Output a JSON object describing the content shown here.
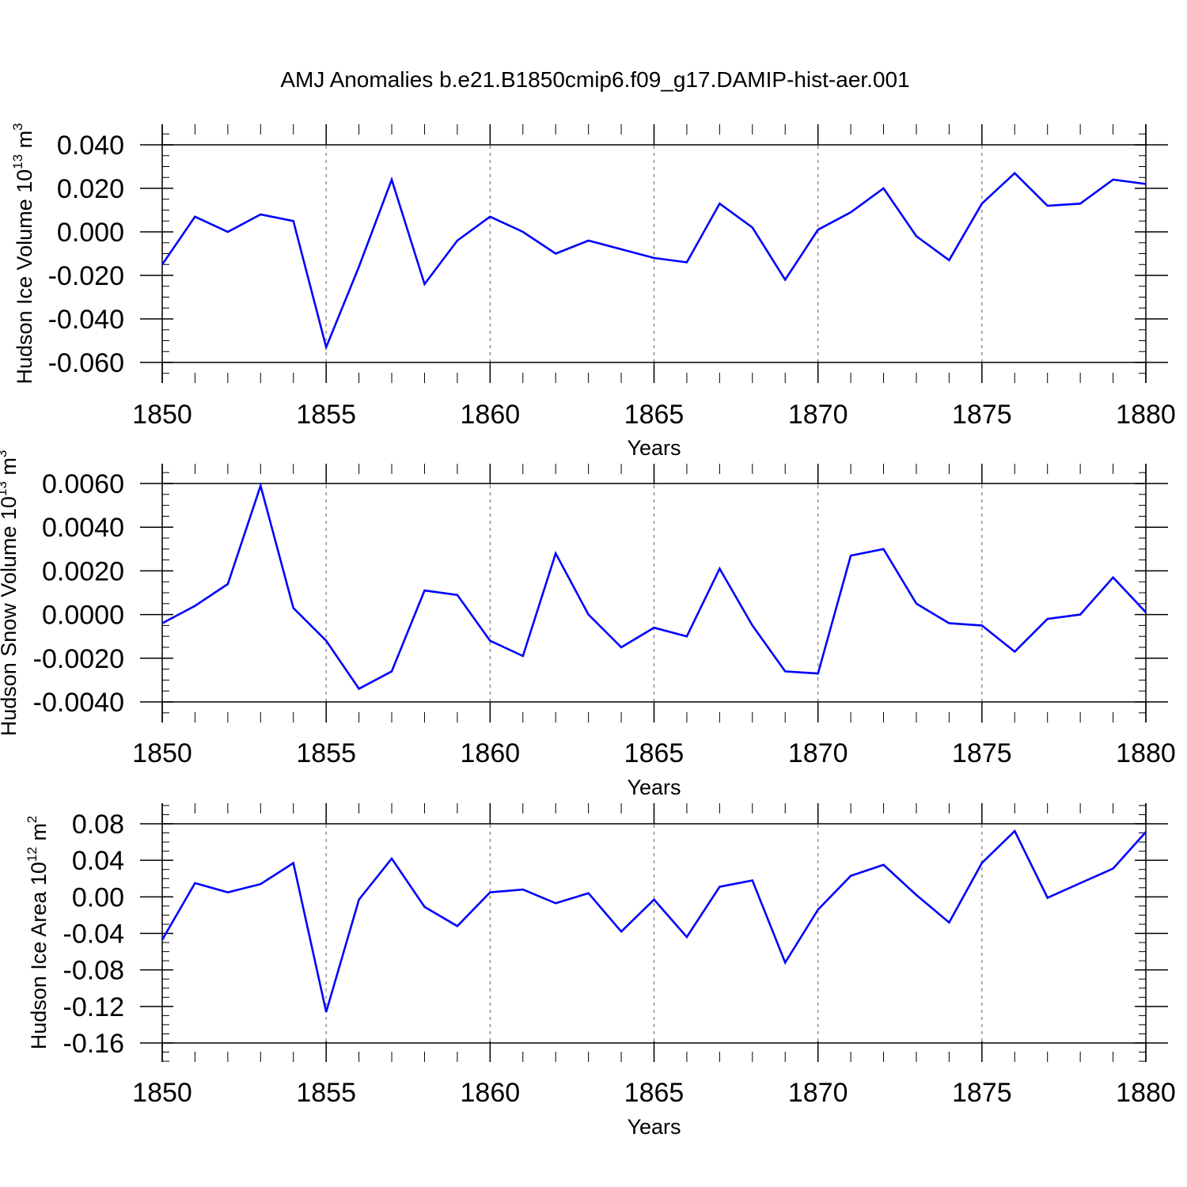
{
  "title": "AMJ Anomalies b.e21.B1850cmip6.f09_g17.DAMIP-hist-aer.001",
  "colors": {
    "line": "#0000ff",
    "axis": "#000000",
    "grid": "#777777"
  },
  "chart_data": [
    {
      "type": "line",
      "ylabel_main": "Hudson Ice Volume 10",
      "ylabel_exp": "13",
      "ylabel_unit": " m",
      "ylabel_unit_exp": "3",
      "xlabel": "Years",
      "xlim": [
        1850,
        1880
      ],
      "ylim": [
        -0.07,
        0.04
      ],
      "yticks": [
        -0.06,
        -0.04,
        -0.02,
        0.0,
        0.02,
        0.04
      ],
      "ytick_labels": [
        "-0.060",
        "-0.040",
        "-0.020",
        "0.000",
        "0.020",
        "0.040"
      ],
      "yminor_step": 0.005,
      "xticks": [
        1850,
        1855,
        1860,
        1865,
        1870,
        1875,
        1880
      ],
      "xtick_labels": [
        "1850",
        "1855",
        "1860",
        "1865",
        "1870",
        "1875",
        "1880"
      ],
      "grid": "dashed vertical at major x ticks",
      "x": [
        1850,
        1851,
        1852,
        1853,
        1854,
        1855,
        1856,
        1857,
        1858,
        1859,
        1860,
        1861,
        1862,
        1863,
        1864,
        1865,
        1866,
        1867,
        1868,
        1869,
        1870,
        1871,
        1872,
        1873,
        1874,
        1875,
        1876,
        1877,
        1878,
        1879,
        1880
      ],
      "values": [
        -0.015,
        0.007,
        0.0,
        0.008,
        0.005,
        -0.053,
        -0.016,
        0.024,
        -0.024,
        -0.004,
        0.007,
        0.0,
        -0.01,
        -0.004,
        -0.008,
        -0.012,
        -0.014,
        0.013,
        0.002,
        -0.022,
        0.001,
        0.009,
        0.02,
        -0.002,
        -0.013,
        0.013,
        0.027,
        0.012,
        0.013,
        0.024,
        0.022
      ]
    },
    {
      "type": "line",
      "ylabel_main": "Hudson Snow Volume 10",
      "ylabel_exp": "13",
      "ylabel_unit": " m",
      "ylabel_unit_exp": "3",
      "xlabel": "Years",
      "xlim": [
        1850,
        1880
      ],
      "ylim": [
        -0.004,
        0.007
      ],
      "yticks": [
        -0.004,
        -0.002,
        0.0,
        0.002,
        0.004,
        0.006
      ],
      "ytick_labels": [
        "-0.0040",
        "-0.0020",
        "0.0000",
        "0.0020",
        "0.0040",
        "0.0060"
      ],
      "yminor_step": 0.0005,
      "xticks": [
        1850,
        1855,
        1860,
        1865,
        1870,
        1875,
        1880
      ],
      "xtick_labels": [
        "1850",
        "1855",
        "1860",
        "1865",
        "1870",
        "1875",
        "1880"
      ],
      "grid": "dashed vertical at major x ticks",
      "x": [
        1850,
        1851,
        1852,
        1853,
        1854,
        1855,
        1856,
        1857,
        1858,
        1859,
        1860,
        1861,
        1862,
        1863,
        1864,
        1865,
        1866,
        1867,
        1868,
        1869,
        1870,
        1871,
        1872,
        1873,
        1874,
        1875,
        1876,
        1877,
        1878,
        1879,
        1880
      ],
      "values": [
        -0.0004,
        0.0004,
        0.0014,
        0.0059,
        0.0003,
        -0.0012,
        -0.0034,
        -0.0026,
        0.0011,
        0.0009,
        -0.0012,
        -0.0019,
        0.0028,
        0.0,
        -0.0015,
        -0.0006,
        -0.001,
        0.0021,
        -0.0005,
        -0.0026,
        -0.0027,
        0.0027,
        0.003,
        0.0005,
        -0.0004,
        -0.0005,
        -0.0017,
        -0.0002,
        0.0,
        0.0017,
        0.0001
      ]
    },
    {
      "type": "line",
      "ylabel_main": "Hudson Ice Area 10",
      "ylabel_exp": "12",
      "ylabel_unit": " m",
      "ylabel_unit_exp": "2",
      "xlabel": "Years",
      "xlim": [
        1850,
        1880
      ],
      "ylim": [
        -0.16,
        0.1
      ],
      "yticks": [
        -0.16,
        -0.12,
        -0.08,
        -0.04,
        0.0,
        0.04,
        0.08
      ],
      "ytick_labels": [
        "-0.16",
        "-0.12",
        "-0.08",
        "-0.04",
        "0.00",
        "0.04",
        "0.08"
      ],
      "yminor_step": 0.01,
      "xticks": [
        1850,
        1855,
        1860,
        1865,
        1870,
        1875,
        1880
      ],
      "xtick_labels": [
        "1850",
        "1855",
        "1860",
        "1865",
        "1870",
        "1875",
        "1880"
      ],
      "grid": "dashed vertical at major x ticks",
      "x": [
        1850,
        1851,
        1852,
        1853,
        1854,
        1855,
        1856,
        1857,
        1858,
        1859,
        1860,
        1861,
        1862,
        1863,
        1864,
        1865,
        1866,
        1867,
        1868,
        1869,
        1870,
        1871,
        1872,
        1873,
        1874,
        1875,
        1876,
        1877,
        1878,
        1879,
        1880
      ],
      "values": [
        -0.047,
        0.015,
        0.005,
        0.014,
        0.037,
        -0.126,
        -0.003,
        0.042,
        -0.011,
        -0.032,
        0.005,
        0.008,
        -0.007,
        0.004,
        -0.038,
        -0.003,
        -0.044,
        0.011,
        0.018,
        -0.072,
        -0.014,
        0.023,
        0.035,
        0.002,
        -0.028,
        0.037,
        0.072,
        -0.001,
        0.015,
        0.031,
        0.071
      ]
    }
  ]
}
